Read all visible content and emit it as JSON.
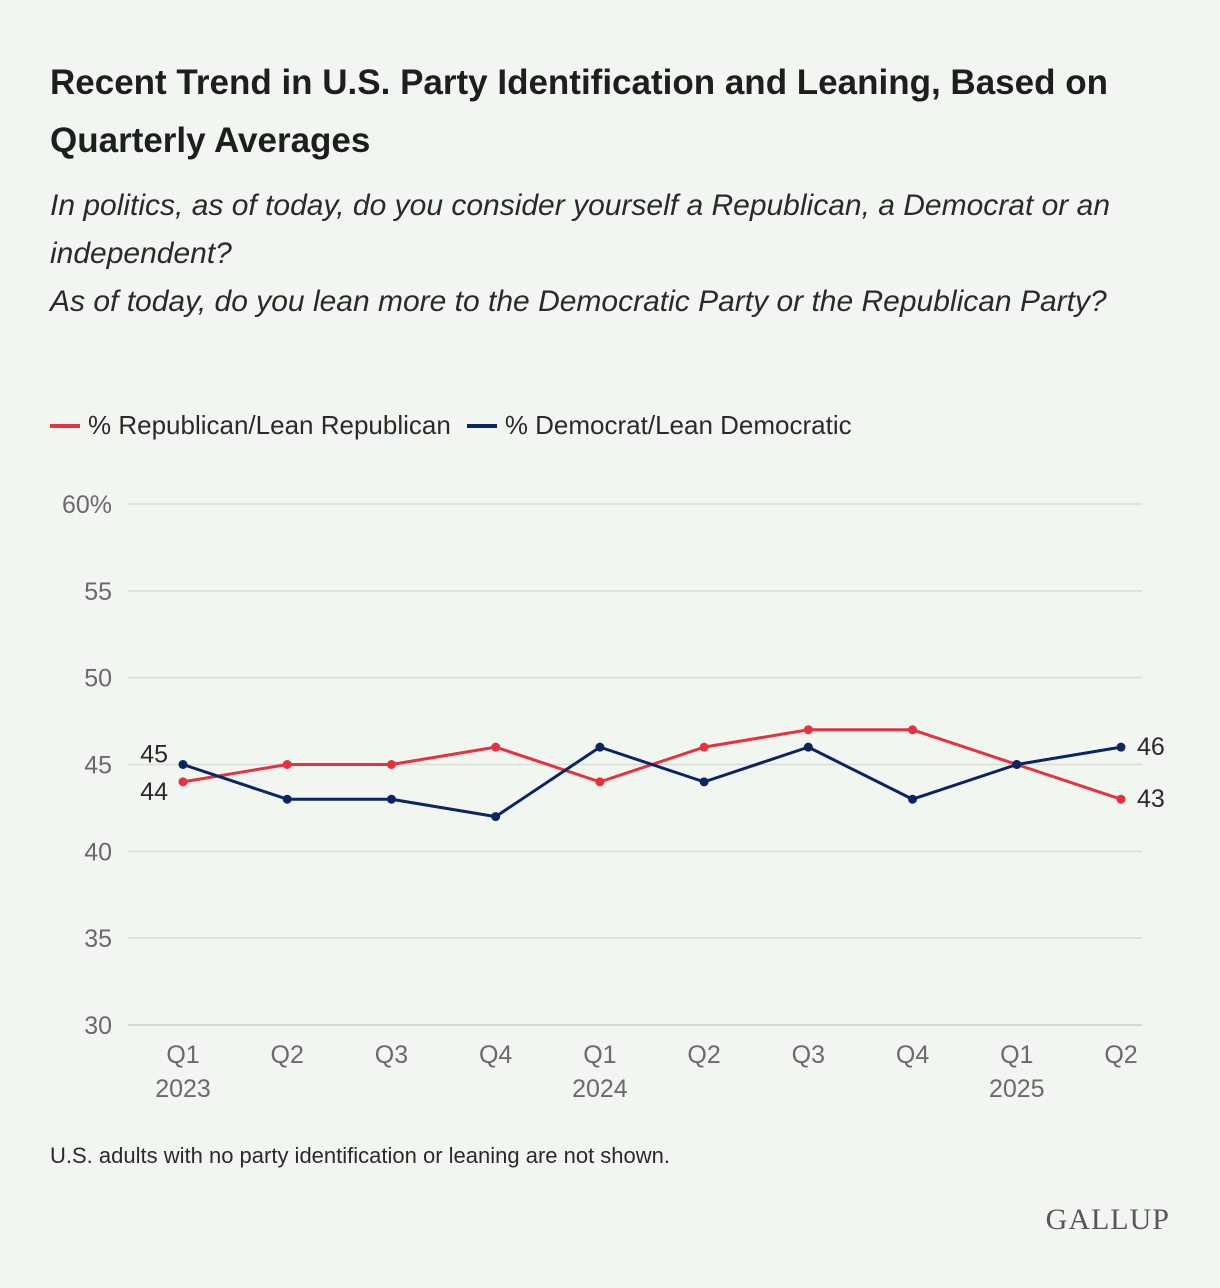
{
  "chart_data": {
    "type": "line",
    "title": "Recent Trend in U.S. Party Identification and Leaning, Based on Quarterly Averages",
    "subtitle": [
      "In politics, as of today, do you consider yourself a Republican, a Democrat or an independent?",
      "As of today, do you lean more to the Democratic Party or the Republican Party?"
    ],
    "categories": [
      "Q1 2023",
      "Q2",
      "Q3",
      "Q4",
      "Q1 2024",
      "Q2",
      "Q3",
      "Q4",
      "Q1 2025",
      "Q2"
    ],
    "x_tick_labels": [
      [
        "Q1",
        "2023"
      ],
      [
        "Q2",
        ""
      ],
      [
        "Q3",
        ""
      ],
      [
        "Q4",
        ""
      ],
      [
        "Q1",
        "2024"
      ],
      [
        "Q2",
        ""
      ],
      [
        "Q3",
        ""
      ],
      [
        "Q4",
        ""
      ],
      [
        "Q1",
        "2025"
      ],
      [
        "Q2",
        ""
      ]
    ],
    "y_ticks": [
      "60%",
      "55",
      "50",
      "45",
      "40",
      "35",
      "30"
    ],
    "ylim": [
      30,
      60
    ],
    "grid": true,
    "legend_position": "top-left",
    "series": [
      {
        "name": "% Republican/Lean Republican",
        "color": "#e8303e",
        "values": [
          44,
          45,
          45,
          46,
          44,
          46,
          47,
          47,
          45,
          43
        ]
      },
      {
        "name": "% Democrat/Lean Democratic",
        "color": "#0b2563",
        "values": [
          45,
          43,
          43,
          42,
          46,
          44,
          46,
          43,
          45,
          46
        ]
      }
    ],
    "data_labels": {
      "start": {
        "republican": "44",
        "democrat": "45"
      },
      "end": {
        "republican": "43",
        "democrat": "46"
      }
    },
    "note": "U.S. adults with no party identification or leaning are not shown.",
    "source_logo": "GALLUP"
  }
}
